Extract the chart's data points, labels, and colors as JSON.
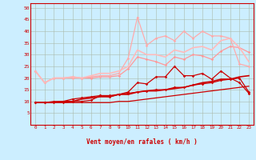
{
  "background_color": "#cceeff",
  "grid_color": "#aabbaa",
  "xlabel": "Vent moyen/en rafales ( km/h )",
  "xlim": [
    -0.5,
    23.5
  ],
  "ylim": [
    0,
    52
  ],
  "yticks": [
    5,
    10,
    15,
    20,
    25,
    30,
    35,
    40,
    45,
    50
  ],
  "xticks": [
    0,
    1,
    2,
    3,
    4,
    5,
    6,
    7,
    8,
    9,
    10,
    11,
    12,
    13,
    14,
    15,
    16,
    17,
    18,
    19,
    20,
    21,
    22,
    23
  ],
  "lines": [
    {
      "x": [
        0,
        1,
        2,
        3,
        4,
        5,
        6,
        7,
        8,
        9,
        10,
        11,
        12,
        13,
        14,
        15,
        16,
        17,
        18,
        19,
        20,
        21,
        22,
        23
      ],
      "y": [
        9.5,
        9.5,
        9.5,
        9.5,
        9.5,
        9.5,
        9.5,
        9.5,
        9.5,
        10,
        10,
        10.5,
        11,
        11.5,
        12,
        12.5,
        13,
        13.5,
        14,
        14.5,
        15,
        15.5,
        16,
        16.5
      ],
      "color": "#cc0000",
      "lw": 0.9,
      "marker": null,
      "ms": 0
    },
    {
      "x": [
        0,
        1,
        2,
        3,
        4,
        5,
        6,
        7,
        8,
        9,
        10,
        11,
        12,
        13,
        14,
        15,
        16,
        17,
        18,
        19,
        20,
        21,
        22,
        23
      ],
      "y": [
        9.5,
        9.5,
        9.5,
        9.5,
        10,
        10,
        10.5,
        12.5,
        12,
        13,
        13.5,
        14,
        14.5,
        15,
        15,
        16,
        16,
        17,
        17.5,
        18,
        19,
        19.5,
        20,
        14
      ],
      "color": "#cc0000",
      "lw": 0.9,
      "marker": "D",
      "ms": 1.8
    },
    {
      "x": [
        0,
        1,
        2,
        3,
        4,
        5,
        6,
        7,
        8,
        9,
        10,
        11,
        12,
        13,
        14,
        15,
        16,
        17,
        18,
        19,
        20,
        21,
        22,
        23
      ],
      "y": [
        9.5,
        9.5,
        10,
        10,
        11,
        11.5,
        12,
        12.5,
        12.5,
        13,
        14,
        18,
        17.5,
        20.5,
        20.5,
        25,
        21,
        21,
        22,
        19.5,
        23,
        20,
        18,
        13.5
      ],
      "color": "#cc0000",
      "lw": 0.9,
      "marker": "D",
      "ms": 1.8
    },
    {
      "x": [
        0,
        1,
        2,
        3,
        4,
        5,
        6,
        7,
        8,
        9,
        10,
        11,
        12,
        13,
        14,
        15,
        16,
        17,
        18,
        19,
        20,
        21,
        22,
        23
      ],
      "y": [
        9.5,
        9.5,
        9.5,
        10,
        10,
        11,
        11.5,
        12,
        12,
        13,
        13,
        14,
        14.5,
        14.5,
        15,
        15.5,
        16,
        17,
        18,
        18.5,
        19.5,
        19.5,
        20.5,
        21
      ],
      "color": "#cc0000",
      "lw": 1.2,
      "marker": null,
      "ms": 0
    },
    {
      "x": [
        0,
        1,
        2,
        3,
        4,
        5,
        6,
        7,
        8,
        9,
        10,
        11,
        12,
        13,
        14,
        15,
        16,
        17,
        18,
        19,
        20,
        21,
        22,
        23
      ],
      "y": [
        23,
        18,
        20,
        20,
        20.5,
        20,
        20,
        20.5,
        20.5,
        21,
        24,
        29,
        28,
        27,
        25.5,
        29,
        28,
        30,
        29.5,
        28,
        31.5,
        33.5,
        33,
        31
      ],
      "color": "#ff9999",
      "lw": 0.9,
      "marker": "D",
      "ms": 1.8
    },
    {
      "x": [
        0,
        1,
        2,
        3,
        4,
        5,
        6,
        7,
        8,
        9,
        10,
        11,
        12,
        13,
        14,
        15,
        16,
        17,
        18,
        19,
        20,
        21,
        22,
        23
      ],
      "y": [
        23,
        18,
        20,
        20,
        20,
        20,
        20.5,
        21,
        21,
        22,
        28.5,
        46,
        34,
        37,
        38,
        36,
        40,
        37,
        40,
        38,
        38,
        37,
        26,
        25
      ],
      "color": "#ffaaaa",
      "lw": 0.9,
      "marker": "D",
      "ms": 1.8
    },
    {
      "x": [
        0,
        1,
        2,
        3,
        4,
        5,
        6,
        7,
        8,
        9,
        10,
        11,
        12,
        13,
        14,
        15,
        16,
        17,
        18,
        19,
        20,
        21,
        22,
        23
      ],
      "y": [
        23,
        18,
        20,
        20,
        20.5,
        20,
        21,
        22,
        22,
        23,
        25,
        32,
        30,
        30,
        29,
        32,
        31,
        33,
        33.5,
        32,
        36,
        37,
        33,
        27
      ],
      "color": "#ffbbbb",
      "lw": 1.2,
      "marker": null,
      "ms": 0
    }
  ],
  "wind_arrows": {
    "x": [
      0,
      1,
      2,
      3,
      4,
      5,
      6,
      7,
      8,
      9,
      10,
      11,
      12,
      13,
      14,
      15,
      16,
      17,
      18,
      19,
      20,
      21,
      22,
      23
    ],
    "angles_deg": [
      90,
      90,
      90,
      90,
      90,
      90,
      90,
      90,
      90,
      90,
      60,
      45,
      45,
      40,
      40,
      35,
      30,
      30,
      25,
      30,
      25,
      20,
      15,
      20
    ]
  }
}
